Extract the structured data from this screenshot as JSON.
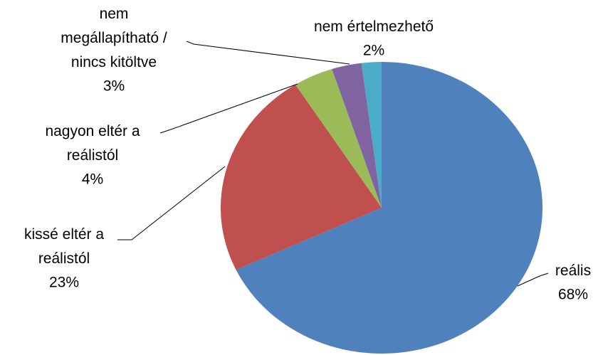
{
  "chart_data": {
    "type": "pie",
    "categories": [
      "reális",
      "kissé eltér a\nreálistól",
      "nagyon eltér a\nreálistól",
      "nem\nmegállapítható /\nnincs kitöltve",
      "nem értelmezhető"
    ],
    "values": [
      68,
      23,
      4,
      3,
      2
    ],
    "value_labels": [
      "68%",
      "23%",
      "4%",
      "3%",
      "2%"
    ],
    "colors": [
      "#4f81bd",
      "#c0504d",
      "#9bbb59",
      "#8064a2",
      "#4bacc6"
    ]
  }
}
